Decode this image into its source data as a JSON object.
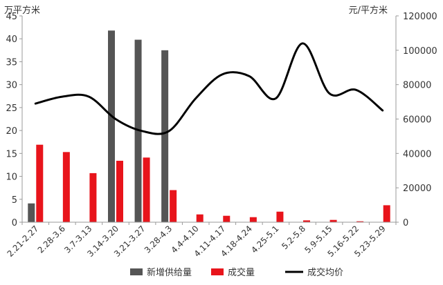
{
  "chart_data": {
    "type": "bar+line",
    "left_unit": "万平方米",
    "right_unit": "元/平方米",
    "left_ticks": [
      0,
      5,
      10,
      15,
      20,
      25,
      30,
      35,
      40,
      45
    ],
    "right_ticks": [
      0,
      20000,
      40000,
      60000,
      80000,
      100000,
      120000
    ],
    "ylim_left": [
      0,
      45
    ],
    "ylim_right": [
      0,
      120000
    ],
    "categories": [
      "2.21-2.27",
      "2.28-3.6",
      "3.7-3.13",
      "3.14-3.20",
      "3.21-3.27",
      "3.28-4.3",
      "4.4-4.10",
      "4.11-4.17",
      "4.18-4.24",
      "4.25-5.1",
      "5.2-5.8",
      "5.9-5.15",
      "5.16-5.22",
      "5.23-5.29"
    ],
    "series": [
      {
        "name": "新增供给量",
        "type": "bar",
        "axis": "left",
        "color": "#555555",
        "values": [
          4.1,
          0,
          0,
          41.8,
          39.8,
          37.5,
          0,
          0,
          0,
          0,
          0,
          0,
          0,
          0
        ]
      },
      {
        "name": "成交量",
        "type": "bar",
        "axis": "left",
        "color": "#e8141b",
        "values": [
          16.9,
          15.3,
          10.7,
          13.4,
          14.1,
          7.0,
          1.7,
          1.4,
          1.1,
          2.3,
          0.4,
          0.5,
          0.2,
          3.7
        ]
      },
      {
        "name": "成交均价",
        "type": "line",
        "axis": "right",
        "color": "#000000",
        "values": [
          69000,
          73000,
          73000,
          60000,
          53000,
          53000,
          72000,
          86000,
          85000,
          72000,
          104000,
          75000,
          77000,
          65000
        ]
      }
    ],
    "legend_position": "bottom",
    "grid": false
  }
}
